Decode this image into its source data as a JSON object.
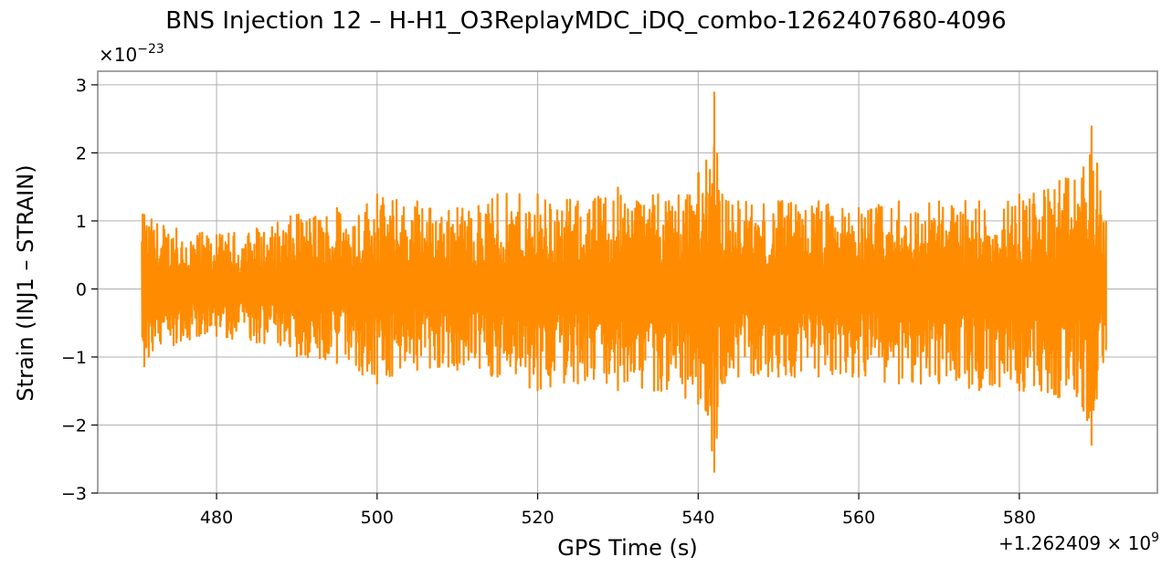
{
  "chart_data": {
    "type": "line",
    "title": "BNS Injection 12 – H-H1_O3ReplayMDC_iDQ_combo-1262407680-4096",
    "xlabel": "GPS Time (s)",
    "ylabel": "Strain (INJ1 – STRAIN)",
    "y_scale_base": "×10",
    "y_scale_exponent": "−23",
    "x_offset_base": "+1.262409 × 10",
    "x_offset_exponent": "9",
    "xlim": [
      465.2,
      597.2
    ],
    "ylim": [
      -3.0,
      3.2
    ],
    "x_ticks": [
      480,
      500,
      520,
      540,
      560,
      580
    ],
    "y_ticks": [
      3,
      2,
      1,
      0,
      -1,
      -2,
      -3
    ],
    "x_tick_labels": [
      "480",
      "500",
      "520",
      "540",
      "560",
      "580"
    ],
    "y_tick_labels": [
      "3",
      "2",
      "1",
      "0",
      "−1",
      "−2",
      "−3"
    ],
    "grid": true,
    "series": [
      {
        "color": "#ff8c00",
        "x_range": [
          470.7,
          590.8
        ],
        "envelope_x": [
          471,
          475,
          480,
          485,
          490,
          495,
          500,
          505,
          510,
          515,
          520,
          525,
          530,
          535,
          540,
          541,
          542,
          543,
          545,
          550,
          555,
          560,
          565,
          570,
          575,
          580,
          585,
          588,
          589,
          590.8
        ],
        "envelope_upper": [
          1.1,
          0.9,
          0.8,
          0.9,
          1.1,
          1.2,
          1.4,
          1.3,
          1.2,
          1.4,
          1.4,
          1.3,
          1.5,
          1.4,
          1.7,
          1.9,
          2.9,
          1.4,
          1.3,
          1.3,
          1.3,
          1.2,
          1.3,
          1.3,
          1.3,
          1.4,
          1.6,
          1.8,
          2.4,
          1.0
        ],
        "envelope_lower": [
          -1.15,
          -0.8,
          -0.7,
          -0.8,
          -1.0,
          -1.1,
          -1.4,
          -1.2,
          -1.2,
          -1.3,
          -1.5,
          -1.4,
          -1.5,
          -1.5,
          -1.7,
          -1.8,
          -2.7,
          -1.4,
          -1.3,
          -1.3,
          -1.3,
          -1.3,
          -1.4,
          -1.4,
          -1.5,
          -1.5,
          -1.6,
          -1.8,
          -2.3,
          -0.9
        ]
      }
    ]
  }
}
